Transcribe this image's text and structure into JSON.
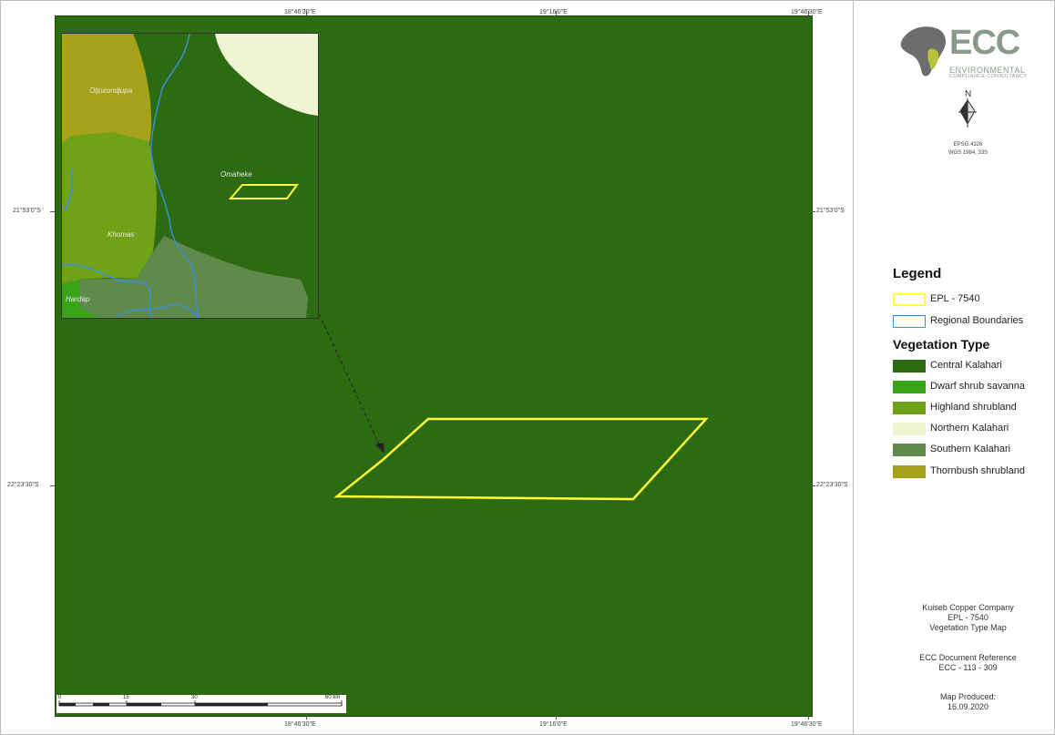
{
  "map": {
    "grid_labels": {
      "top": [
        "18°46'30\"E",
        "19°16'0\"E",
        "19°46'30\"E"
      ],
      "bottom": [
        "18°46'30\"E",
        "19°16'0\"E",
        "19°46'30\"E"
      ],
      "left": [
        "21°53'0\"S",
        "22°23'30\"S"
      ],
      "right": [
        "21°53'0\"S",
        "22°23'30\"S"
      ]
    },
    "inset_labels": [
      "Otjozondjupa",
      "Omaheke",
      "Khomas",
      "Hardap"
    ],
    "scalebar": {
      "labels": [
        "0",
        "15",
        "30",
        "60 km"
      ]
    }
  },
  "logo": {
    "name": "ECC",
    "line1": "ENVIRONMENTAL",
    "line2": "COMPLIANCE CONSULTANCY"
  },
  "north_arrow": {
    "label": "N"
  },
  "crs": {
    "line1": "EPSG:4326",
    "line2": "WGS 1984, 33S"
  },
  "legend": {
    "title": "Legend",
    "items": [
      {
        "label": "EPL - 7540",
        "stroke": "#ffff33"
      },
      {
        "label": "Regional Boundaries",
        "stroke": "#3a8fd6"
      }
    ],
    "vegetation_title": "Vegetation Type",
    "vegetation": [
      {
        "label": "Central Kalahari",
        "color": "#2d6b12"
      },
      {
        "label": "Dwarf shrub savanna",
        "color": "#3aa318"
      },
      {
        "label": "Highland shrubland",
        "color": "#6fa217"
      },
      {
        "label": "Northern Kalahari",
        "color": "#eef5d3"
      },
      {
        "label": "Southern Kalahari",
        "color": "#5f8a4c"
      },
      {
        "label": "Thornbush shrubland",
        "color": "#a8a21a"
      }
    ]
  },
  "info": {
    "company": "Kuiseb Copper Company",
    "epl": "EPL - 7540",
    "map_title": "Vegetation Type Map",
    "ref_label": "ECC Document Reference",
    "ref_value": "ECC - 113 - 309",
    "produced_label": "Map Produced:",
    "produced_date": "16.09.2020"
  }
}
